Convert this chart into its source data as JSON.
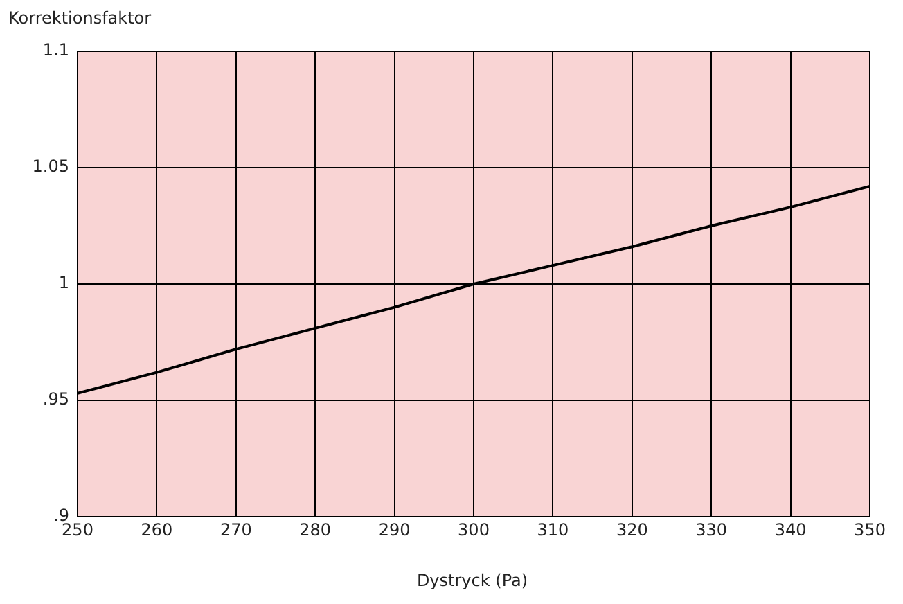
{
  "chart_data": {
    "type": "line",
    "xlabel": "Dystryck (Pa)",
    "ylabel": "Korrektionsfaktor",
    "x": [
      250,
      260,
      270,
      280,
      290,
      300,
      310,
      320,
      330,
      340,
      350
    ],
    "series": [
      {
        "color": "#000000",
        "values": [
          0.953,
          0.962,
          0.972,
          0.981,
          0.99,
          1.0,
          1.008,
          1.016,
          1.025,
          1.033,
          1.042
        ]
      }
    ],
    "xlim": [
      250,
      350
    ],
    "xticks": [
      250,
      260,
      270,
      280,
      290,
      300,
      310,
      320,
      330,
      340,
      350
    ],
    "ylim": [
      0.9,
      1.1
    ],
    "yticks": [
      {
        "value": 0.9,
        "label": ".9"
      },
      {
        "value": 0.95,
        "label": ".95"
      },
      {
        "value": 1,
        "label": "1"
      },
      1.05,
      1.1
    ],
    "grid": true,
    "legend": false,
    "marker": "none",
    "line_style": "solid"
  }
}
